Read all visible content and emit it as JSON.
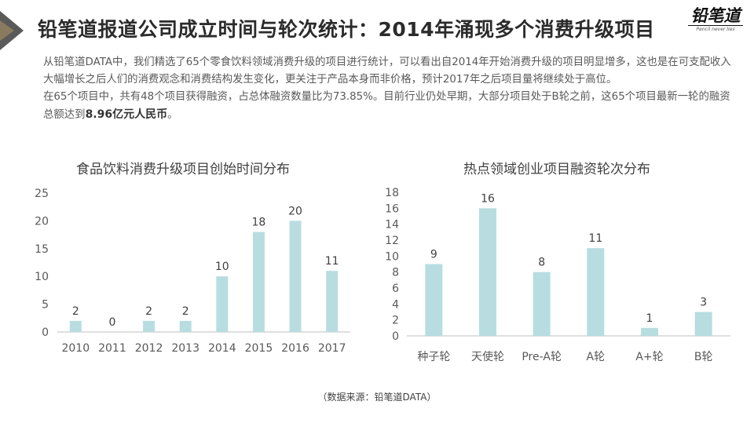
{
  "header": {
    "title": "铅笔道报道公司成立时间与轮次统计：2014年涌现多个消费升级项目",
    "logo_text": "铅笔道",
    "logo_sub": "Pencil never lies"
  },
  "intro": {
    "para1": "从铅笔道DATA中，我们精选了65个零食饮料领域消费升级的项目进行统计，可以看出自2014年开始消费升级的项目明显增多，这也是在可支配收入大幅增长之后人们的消费观念和消费结构发生变化，更关注于产品本身而非价格，预计2017年之后项目量将继续处于高位。",
    "para2_pre": "在65个项目中，共有48个项目获得融资，占总体融资数量比为73.85%。目前行业仍处早期，大部分项目处于B轮之前，这65个项目最新一轮的融资总额达到",
    "para2_bold": "8.96亿元人民币",
    "para2_post": "。"
  },
  "chart_data": [
    {
      "type": "bar",
      "title": "食品饮料消费升级项目创始时间分布",
      "categories": [
        "2010",
        "2011",
        "2012",
        "2013",
        "2014",
        "2015",
        "2016",
        "2017"
      ],
      "values": [
        2,
        0,
        2,
        2,
        10,
        18,
        20,
        11
      ],
      "ylim": [
        0,
        25
      ],
      "yticks": [
        0,
        5,
        10,
        15,
        20,
        25
      ],
      "grid": false,
      "bar_color": "#b8dde0"
    },
    {
      "type": "bar",
      "title": "热点领域创业项目融资轮次分布",
      "categories": [
        "种子轮",
        "天使轮",
        "Pre-A轮",
        "A轮",
        "A+轮",
        "B轮"
      ],
      "values": [
        9,
        16,
        8,
        11,
        1,
        3
      ],
      "ylim": [
        0,
        18
      ],
      "yticks": [
        0,
        2,
        4,
        6,
        8,
        10,
        12,
        14,
        16,
        18
      ],
      "grid": false,
      "bar_color": "#b8dde0"
    }
  ],
  "footer": {
    "source": "（数据来源：铅笔道DATA）"
  }
}
